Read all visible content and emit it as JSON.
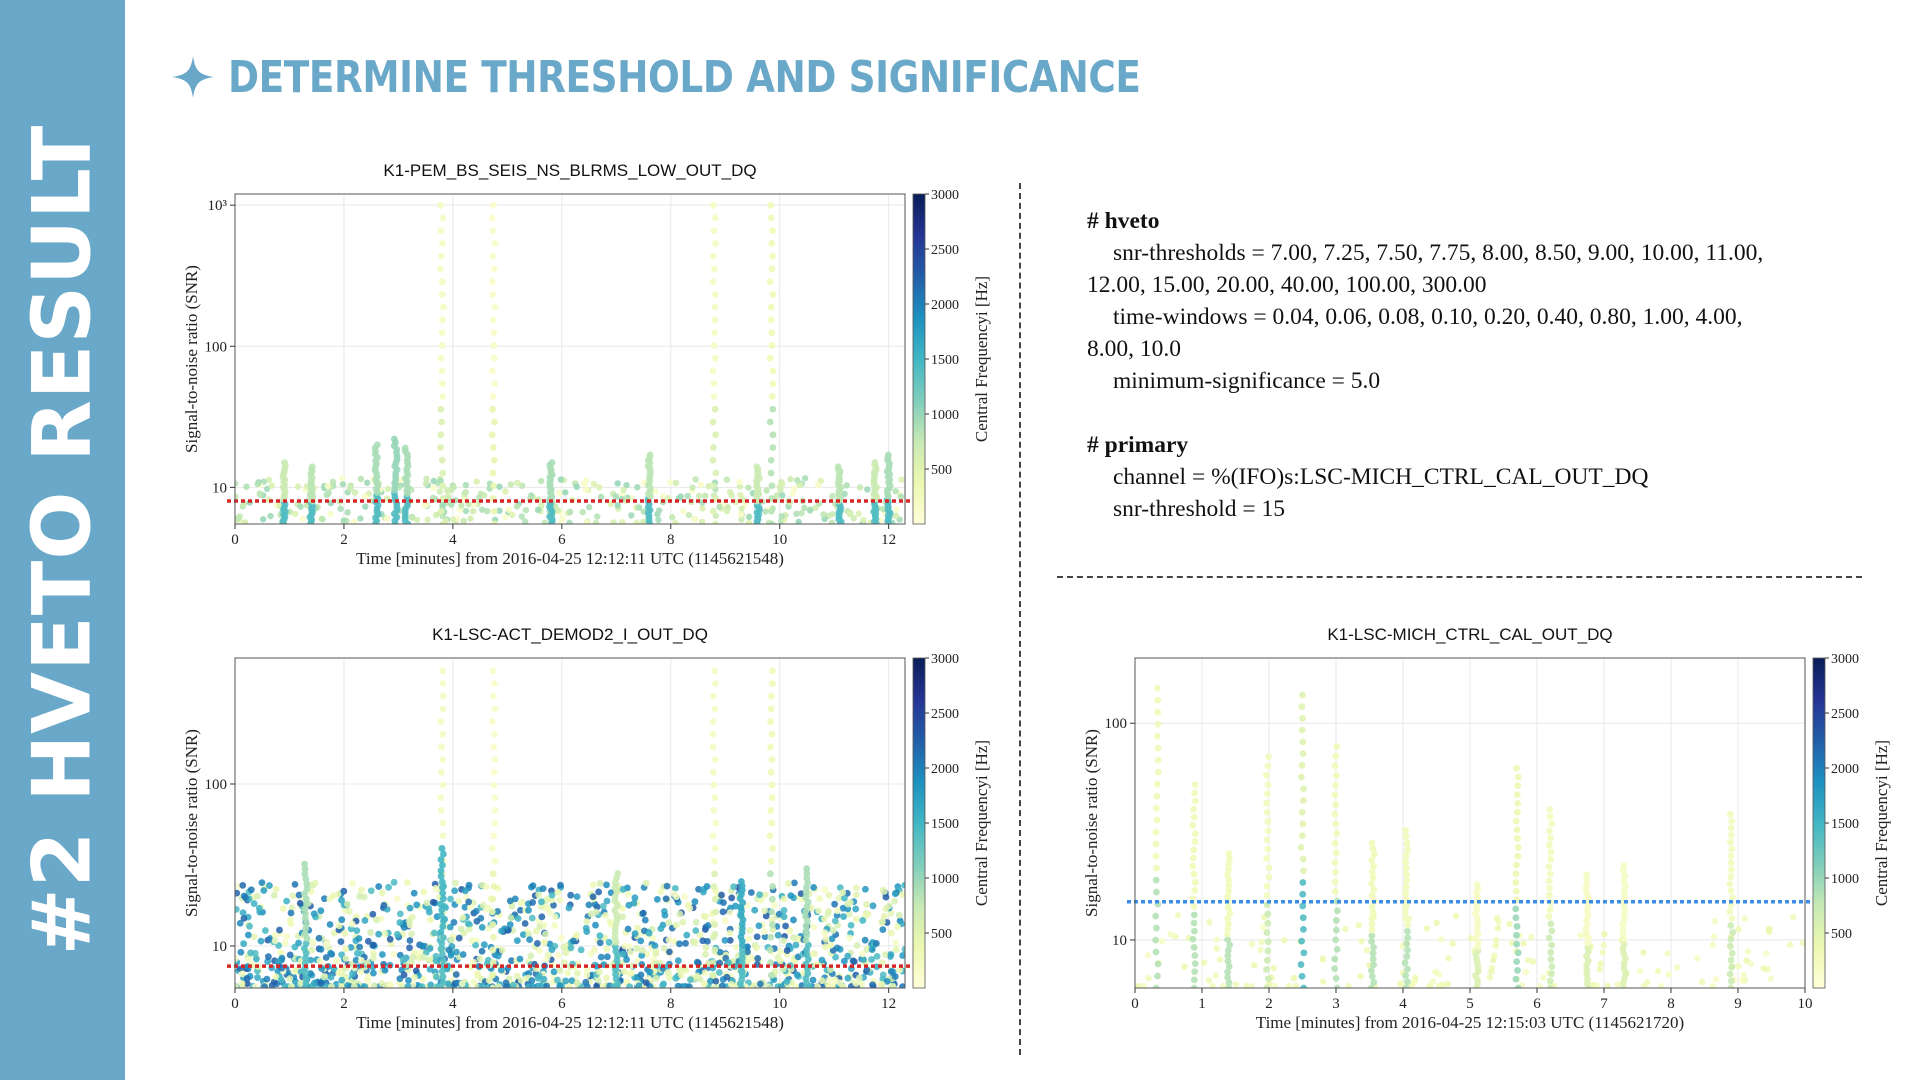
{
  "sidebar": {
    "title": "#2 HVETO RESULT"
  },
  "slide": {
    "title": "DETERMINE THRESHOLD AND SIGNIFICANCE",
    "bullet_icon": "four-point-star-icon",
    "accent_color": "#6aa8c9"
  },
  "config": {
    "hveto_header": "# hveto",
    "snr_thresholds_line1": "snr-thresholds = 7.00, 7.25, 7.50, 7.75, 8.00, 8.50, 9.00, 10.00, 11.00,",
    "snr_thresholds_line2": "12.00, 15.00, 20.00, 40.00, 100.00, 300.00",
    "time_windows_line1": "time-windows = 0.04, 0.06, 0.08, 0.10, 0.20, 0.40, 0.80, 1.00, 4.00,",
    "time_windows_line2": "8.00, 10.0",
    "minimum_significance": "minimum-significance = 5.0",
    "primary_header": "# primary",
    "channel": "channel = %(IFO)s:LSC-MICH_CTRL_CAL_OUT_DQ",
    "snr_threshold": "snr-threshold = 15"
  },
  "chart_data": [
    {
      "type": "scatter",
      "title": "K1-PEM_BS_SEIS_NS_BLRMS_LOW_OUT_DQ",
      "xlabel": "Time [minutes] from 2016-04-25 12:12:11 UTC (1145621548)",
      "ylabel": "Signal-to-noise ratio (SNR)",
      "yscale": "log",
      "xlim": [
        0,
        12.3
      ],
      "ylim": [
        5.5,
        1200
      ],
      "xticks": [
        "0",
        "2",
        "4",
        "6",
        "8",
        "10",
        "12"
      ],
      "xtick_values": [
        0,
        2,
        4,
        6,
        8,
        10,
        12
      ],
      "yticks": [
        "10",
        "100",
        "10³"
      ],
      "ytick_values": [
        10,
        100,
        1000
      ],
      "colorbar": {
        "label": "Central Frequencyi [Hz]",
        "ticks": [
          "500",
          "1000",
          "1500",
          "2000",
          "2500",
          "3000"
        ],
        "tick_values": [
          500,
          1000,
          1500,
          2000,
          2500,
          3000
        ],
        "range": [
          0,
          3000
        ]
      },
      "threshold": {
        "value": 8,
        "color": "#d62728"
      },
      "spikes": [
        {
          "x": 3.8,
          "snr": 1000,
          "freq": 200
        },
        {
          "x": 4.75,
          "snr": 1000,
          "freq": 150
        },
        {
          "x": 8.8,
          "snr": 1000,
          "freq": 200
        },
        {
          "x": 9.85,
          "snr": 1000,
          "freq": 300
        },
        {
          "x": 0.9,
          "snr": 15,
          "freq": 700
        },
        {
          "x": 1.4,
          "snr": 14,
          "freq": 800
        },
        {
          "x": 2.6,
          "snr": 20,
          "freq": 900
        },
        {
          "x": 2.95,
          "snr": 22,
          "freq": 1000
        },
        {
          "x": 3.15,
          "snr": 19,
          "freq": 900
        },
        {
          "x": 5.8,
          "snr": 15,
          "freq": 900
        },
        {
          "x": 7.6,
          "snr": 17,
          "freq": 800
        },
        {
          "x": 9.6,
          "snr": 14,
          "freq": 700
        },
        {
          "x": 11.1,
          "snr": 14,
          "freq": 800
        },
        {
          "x": 11.75,
          "snr": 15,
          "freq": 700
        },
        {
          "x": 12.0,
          "snr": 17,
          "freq": 900
        }
      ]
    },
    {
      "type": "scatter",
      "title": "K1-LSC-ACT_DEMOD2_I_OUT_DQ",
      "xlabel": "Time [minutes] from 2016-04-25 12:12:11 UTC (1145621548)",
      "ylabel": "Signal-to-noise ratio (SNR)",
      "yscale": "log",
      "xlim": [
        0,
        12.3
      ],
      "ylim": [
        5.5,
        600
      ],
      "xticks": [
        "0",
        "2",
        "4",
        "6",
        "8",
        "10",
        "12"
      ],
      "xtick_values": [
        0,
        2,
        4,
        6,
        8,
        10,
        12
      ],
      "yticks": [
        "10",
        "100"
      ],
      "ytick_values": [
        10,
        100
      ],
      "colorbar": {
        "label": "Central Frequencyi [Hz]",
        "ticks": [
          "500",
          "1000",
          "1500",
          "2000",
          "2500",
          "3000"
        ],
        "tick_values": [
          500,
          1000,
          1500,
          2000,
          2500,
          3000
        ],
        "range": [
          0,
          3000
        ]
      },
      "threshold": {
        "value": 7.5,
        "color": "#d62728"
      },
      "spikes": [
        {
          "x": 3.8,
          "snr": 500,
          "freq": 200
        },
        {
          "x": 4.75,
          "snr": 500,
          "freq": 150
        },
        {
          "x": 8.8,
          "snr": 500,
          "freq": 200
        },
        {
          "x": 9.85,
          "snr": 500,
          "freq": 300
        },
        {
          "x": 3.8,
          "snr": 40,
          "freq": 1500
        },
        {
          "x": 1.3,
          "snr": 32,
          "freq": 900
        },
        {
          "x": 10.5,
          "snr": 30,
          "freq": 900
        },
        {
          "x": 9.3,
          "snr": 25,
          "freq": 1600
        },
        {
          "x": 7.0,
          "snr": 28,
          "freq": 700
        }
      ]
    },
    {
      "type": "scatter",
      "title": "K1-LSC-MICH_CTRL_CAL_OUT_DQ",
      "xlabel": "Time [minutes] from 2016-04-25 12:15:03 UTC (1145621720)",
      "ylabel": "Signal-to-noise ratio (SNR)",
      "yscale": "log",
      "xlim": [
        0,
        10
      ],
      "ylim": [
        6,
        200
      ],
      "xticks": [
        "0",
        "1",
        "2",
        "3",
        "4",
        "5",
        "6",
        "7",
        "8",
        "9",
        "10"
      ],
      "xtick_values": [
        0,
        1,
        2,
        3,
        4,
        5,
        6,
        7,
        8,
        9,
        10
      ],
      "yticks": [
        "10",
        "100"
      ],
      "ytick_values": [
        10,
        100
      ],
      "colorbar": {
        "label": "Central Frequencyi [Hz]",
        "ticks": [
          "500",
          "1000",
          "1500",
          "2000",
          "2500",
          "3000"
        ],
        "tick_values": [
          500,
          1000,
          1500,
          2000,
          2500,
          3000
        ],
        "range": [
          0,
          3000
        ]
      },
      "threshold": {
        "value": 15,
        "color": "#3a8ee6"
      },
      "spikes": [
        {
          "x": 0.33,
          "snr": 145,
          "freq": 300
        },
        {
          "x": 0.88,
          "snr": 52,
          "freq": 300
        },
        {
          "x": 1.4,
          "snr": 25,
          "freq": 300
        },
        {
          "x": 1.98,
          "snr": 70,
          "freq": 250
        },
        {
          "x": 2.5,
          "snr": 135,
          "freq": 500
        },
        {
          "x": 3.0,
          "snr": 78,
          "freq": 300
        },
        {
          "x": 3.55,
          "snr": 28,
          "freq": 300
        },
        {
          "x": 4.05,
          "snr": 32,
          "freq": 300
        },
        {
          "x": 5.1,
          "snr": 18,
          "freq": 200
        },
        {
          "x": 5.7,
          "snr": 62,
          "freq": 350
        },
        {
          "x": 6.2,
          "snr": 40,
          "freq": 250
        },
        {
          "x": 6.75,
          "snr": 20,
          "freq": 200
        },
        {
          "x": 7.3,
          "snr": 22,
          "freq": 200
        },
        {
          "x": 8.9,
          "snr": 38,
          "freq": 250
        }
      ]
    }
  ]
}
